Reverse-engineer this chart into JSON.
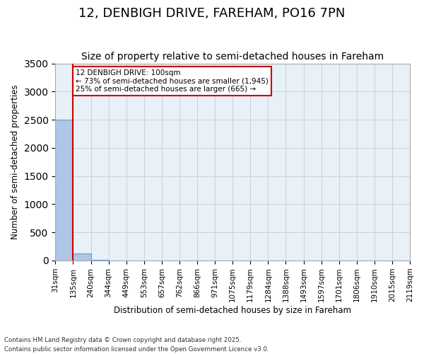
{
  "title": "12, DENBIGH DRIVE, FAREHAM, PO16 7PN",
  "subtitle": "Size of property relative to semi-detached houses in Fareham",
  "xlabel": "Distribution of semi-detached houses by size in Fareham",
  "ylabel": "Number of semi-detached properties",
  "footer": "Contains HM Land Registry data © Crown copyright and database right 2025.\nContains public sector information licensed under the Open Government Licence v3.0.",
  "bin_labels": [
    "31sqm",
    "135sqm",
    "240sqm",
    "344sqm",
    "449sqm",
    "553sqm",
    "657sqm",
    "762sqm",
    "866sqm",
    "971sqm",
    "1075sqm",
    "1179sqm",
    "1284sqm",
    "1388sqm",
    "1493sqm",
    "1597sqm",
    "1701sqm",
    "1806sqm",
    "1910sqm",
    "2015sqm",
    "2119sqm"
  ],
  "bar_values": [
    2500,
    120,
    10,
    5,
    3,
    2,
    1,
    1,
    1,
    0,
    0,
    0,
    0,
    0,
    0,
    0,
    0,
    0,
    0,
    0
  ],
  "bar_color": "#aec6e8",
  "bar_edge_color": "#5a9fd4",
  "annotation_text": "12 DENBIGH DRIVE: 100sqm\n← 73% of semi-detached houses are smaller (1,945)\n25% of semi-detached houses are larger (665) →",
  "vline_color": "#cc0000",
  "annotation_box_color": "#cc0000",
  "ylim": [
    0,
    3500
  ],
  "grid_color": "#cccccc",
  "background_color": "#e8f0f8",
  "title_fontsize": 13,
  "subtitle_fontsize": 10,
  "axis_fontsize": 8.5,
  "tick_fontsize": 7.5
}
